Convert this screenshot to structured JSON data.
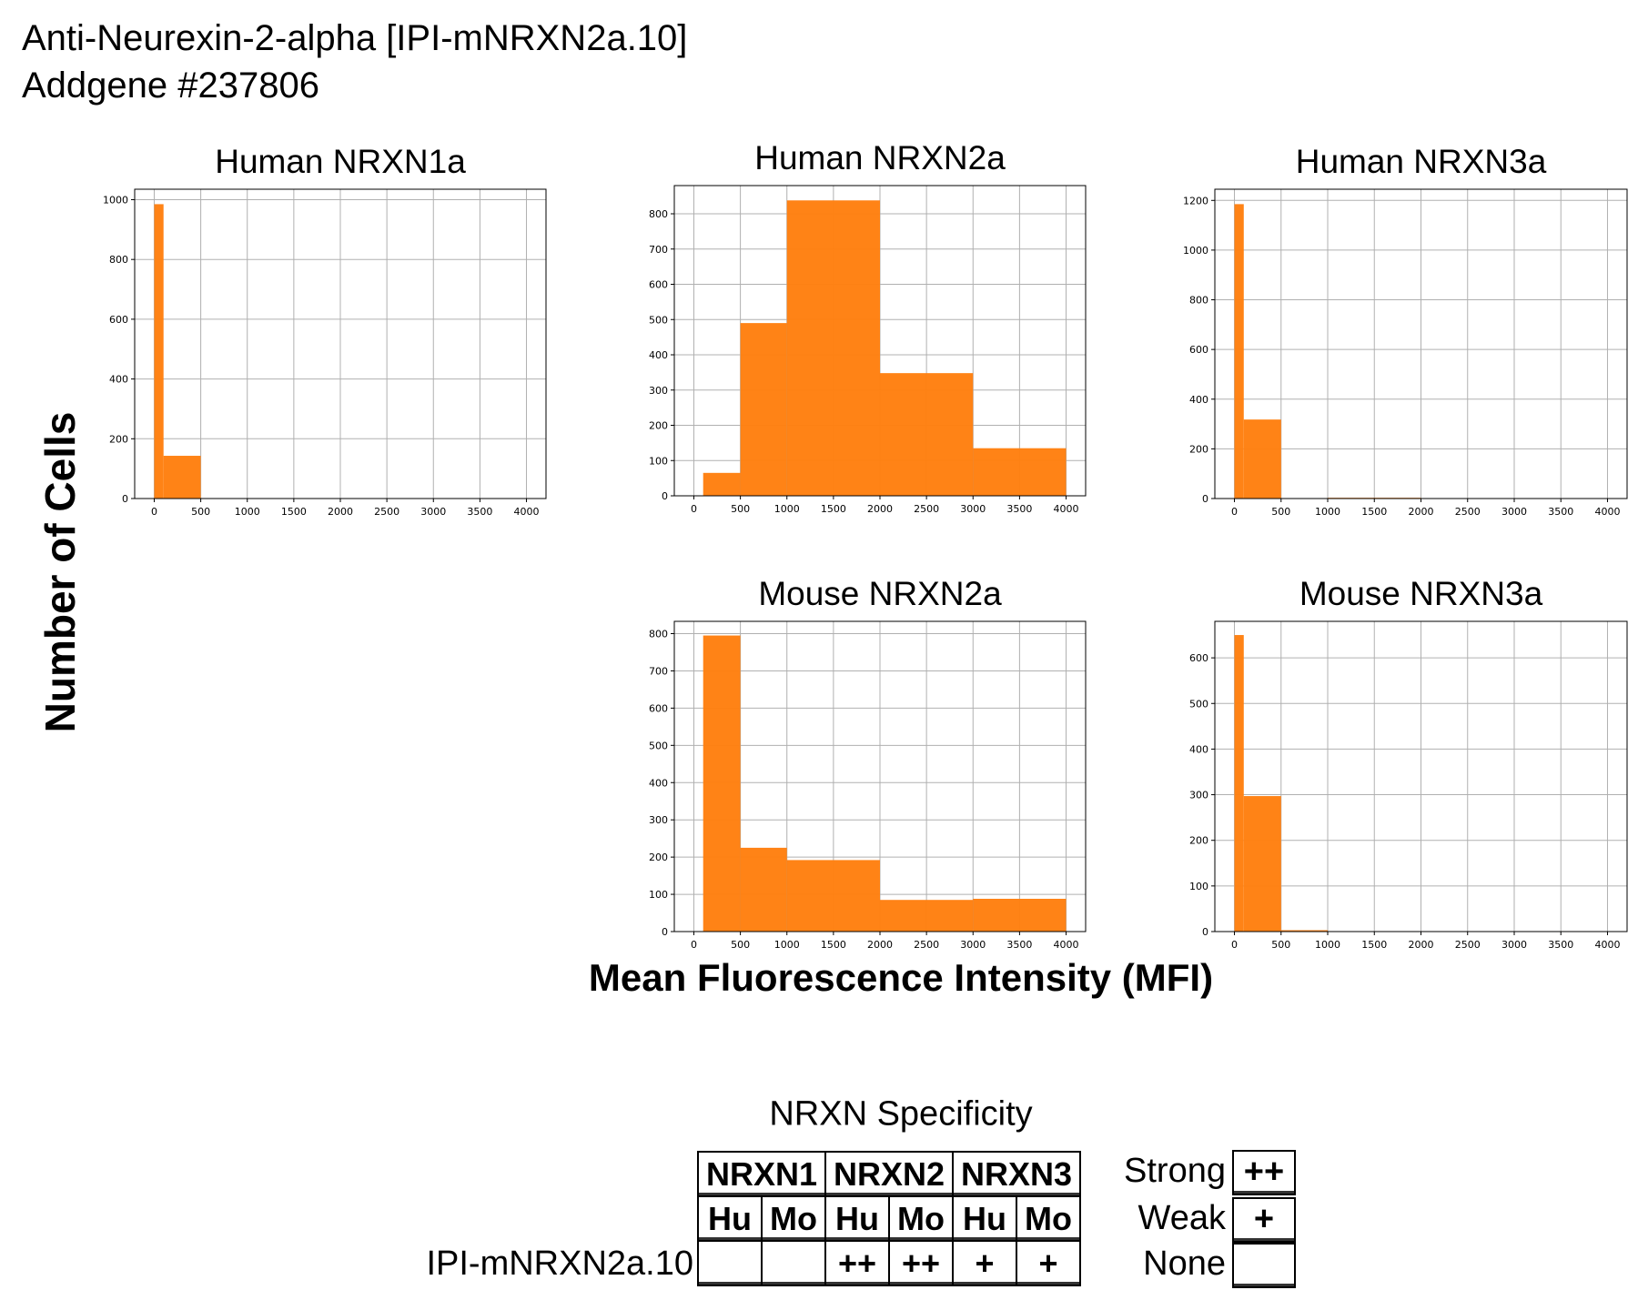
{
  "header": {
    "title": "Anti-Neurexin-2-alpha [IPI-mNRXN2a.10]",
    "subtitle": "Addgene #237806"
  },
  "chart_data": [
    {
      "type": "bar",
      "title": "Human NRXN1a",
      "bin_edges": [
        0,
        100,
        500,
        1000,
        2000,
        3000,
        4000
      ],
      "values": [
        985,
        143,
        0,
        0,
        0,
        0
      ],
      "xlim": [
        -210,
        4210
      ],
      "ylim": [
        0,
        1035
      ],
      "xticks": [
        0,
        500,
        1000,
        1500,
        2000,
        2500,
        3000,
        3500,
        4000
      ],
      "yticks": [
        0,
        200,
        400,
        600,
        800,
        1000
      ],
      "grid": true,
      "color": "#ff7f0e"
    },
    {
      "type": "bar",
      "title": "Human NRXN2a",
      "bin_edges": [
        0,
        100,
        500,
        1000,
        2000,
        3000,
        4000
      ],
      "values": [
        0,
        65,
        490,
        838,
        348,
        135
      ],
      "xlim": [
        -210,
        4210
      ],
      "ylim": [
        0,
        880
      ],
      "xticks": [
        0,
        500,
        1000,
        1500,
        2000,
        2500,
        3000,
        3500,
        4000
      ],
      "yticks": [
        0,
        100,
        200,
        300,
        400,
        500,
        600,
        700,
        800
      ],
      "grid": true,
      "color": "#ff7f0e"
    },
    {
      "type": "bar",
      "title": "Human NRXN3a",
      "bin_edges": [
        0,
        100,
        500,
        1000,
        2000,
        3000,
        4000
      ],
      "values": [
        1185,
        318,
        0,
        3,
        0,
        0
      ],
      "xlim": [
        -210,
        4210
      ],
      "ylim": [
        0,
        1245
      ],
      "xticks": [
        0,
        500,
        1000,
        1500,
        2000,
        2500,
        3000,
        3500,
        4000
      ],
      "yticks": [
        0,
        200,
        400,
        600,
        800,
        1000,
        1200
      ],
      "grid": true,
      "color": "#ff7f0e"
    },
    {
      "type": "bar",
      "title": "Mouse NRXN2a",
      "bin_edges": [
        0,
        100,
        500,
        1000,
        2000,
        3000,
        4000
      ],
      "values": [
        0,
        795,
        225,
        192,
        85,
        88
      ],
      "xlim": [
        -210,
        4210
      ],
      "ylim": [
        0,
        833
      ],
      "xticks": [
        0,
        500,
        1000,
        1500,
        2000,
        2500,
        3000,
        3500,
        4000
      ],
      "yticks": [
        0,
        100,
        200,
        300,
        400,
        500,
        600,
        700,
        800
      ],
      "grid": true,
      "color": "#ff7f0e"
    },
    {
      "type": "bar",
      "title": "Mouse NRXN3a",
      "bin_edges": [
        0,
        100,
        500,
        1000,
        2000,
        3000,
        4000
      ],
      "values": [
        650,
        297,
        3,
        1,
        1,
        1
      ],
      "xlim": [
        -210,
        4210
      ],
      "ylim": [
        0,
        680
      ],
      "xticks": [
        0,
        500,
        1000,
        1500,
        2000,
        2500,
        3000,
        3500,
        4000
      ],
      "yticks": [
        0,
        100,
        200,
        300,
        400,
        500,
        600
      ],
      "grid": true,
      "color": "#ff7f0e"
    }
  ],
  "axes": {
    "ylabel": "Number of Cells",
    "xlabel": "Mean Fluorescence Intensity (MFI)"
  },
  "specificity": {
    "title": "NRXN Specificity",
    "groups": [
      "NRXN1",
      "NRXN2",
      "NRXN3"
    ],
    "species": [
      "Hu",
      "Mo",
      "Hu",
      "Mo",
      "Hu",
      "Mo"
    ],
    "row_label": "IPI-mNRXN2a.10",
    "values": [
      "",
      "",
      "++",
      "++",
      "+",
      "+"
    ],
    "legend": [
      {
        "label": "Strong",
        "symbol": "++"
      },
      {
        "label": "Weak",
        "symbol": "+"
      },
      {
        "label": "None",
        "symbol": ""
      }
    ]
  }
}
